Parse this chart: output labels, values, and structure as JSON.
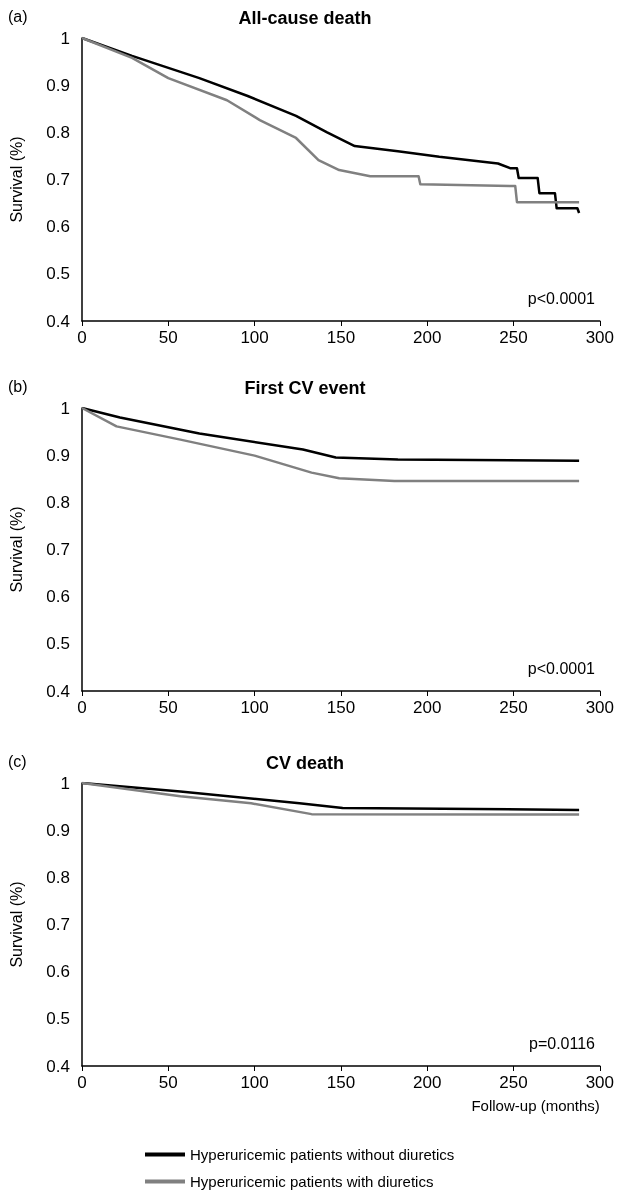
{
  "chart_data": [
    {
      "type": "line",
      "title": "All-cause death",
      "ylabel": "Survival (%)",
      "annotations": [
        "(a)",
        "p<0.0001"
      ],
      "xlim": [
        0,
        300
      ],
      "xticks": [
        0,
        50,
        100,
        150,
        200,
        250,
        300
      ],
      "ylim": [
        0.4,
        1
      ],
      "yticks": [
        0.4,
        0.5,
        0.6,
        0.7,
        0.8,
        0.9,
        1
      ],
      "marker": "none",
      "series": [
        {
          "color": "#000000",
          "x": [
            0,
            29,
            68,
            96,
            124,
            142,
            158,
            183,
            207,
            241,
            248,
            252,
            253,
            264,
            265,
            274,
            275,
            287,
            288
          ],
          "values": [
            1,
            0.962,
            0.915,
            0.877,
            0.835,
            0.8,
            0.771,
            0.76,
            0.748,
            0.734,
            0.724,
            0.724,
            0.703,
            0.703,
            0.671,
            0.671,
            0.639,
            0.639,
            0.629
          ]
        },
        {
          "color": "#808080",
          "x": [
            0,
            29,
            50,
            84,
            103,
            124,
            137,
            149,
            167,
            183,
            195,
            196,
            248,
            251,
            252,
            288
          ],
          "values": [
            1,
            0.958,
            0.915,
            0.868,
            0.826,
            0.788,
            0.741,
            0.72,
            0.707,
            0.707,
            0.707,
            0.69,
            0.686,
            0.686,
            0.652,
            0.652
          ]
        }
      ]
    },
    {
      "type": "line",
      "title": "First CV event",
      "ylabel": "Survival (%)",
      "annotations": [
        "(b)",
        "p<0.0001"
      ],
      "xlim": [
        0,
        300
      ],
      "xticks": [
        0,
        50,
        100,
        150,
        200,
        250,
        300
      ],
      "ylim": [
        0.4,
        1
      ],
      "yticks": [
        0.4,
        0.5,
        0.6,
        0.7,
        0.8,
        0.9,
        1
      ],
      "marker": "none",
      "series": [
        {
          "color": "#000000",
          "x": [
            0,
            22,
            68,
            128,
            147,
            183,
            288
          ],
          "values": [
            1,
            0.98,
            0.946,
            0.912,
            0.895,
            0.891,
            0.888
          ]
        },
        {
          "color": "#808080",
          "x": [
            0,
            20,
            57,
            100,
            133,
            149,
            181,
            288
          ],
          "values": [
            1,
            0.961,
            0.933,
            0.899,
            0.863,
            0.851,
            0.845,
            0.845
          ]
        }
      ]
    },
    {
      "type": "line",
      "title": "CV death",
      "xlabel": "Follow-up (months)",
      "ylabel": "Survival (%)",
      "annotations": [
        "(c)",
        "p=0.0116"
      ],
      "xlim": [
        0,
        300
      ],
      "xticks": [
        0,
        50,
        100,
        150,
        200,
        250,
        300
      ],
      "ylim": [
        0.4,
        1
      ],
      "yticks": [
        0.4,
        0.5,
        0.6,
        0.7,
        0.8,
        0.9,
        1
      ],
      "marker": "none",
      "legend": "bottom",
      "series": [
        {
          "name": "Hyperuricemic patients without diuretics",
          "color": "#000000",
          "x": [
            0,
            57,
            126,
            151,
            288
          ],
          "values": [
            1,
            0.982,
            0.957,
            0.947,
            0.943
          ]
        },
        {
          "name": "Hyperuricemic patients with diuretics",
          "color": "#808080",
          "x": [
            0,
            57,
            98,
            133,
            288
          ],
          "values": [
            1,
            0.972,
            0.957,
            0.934,
            0.933
          ]
        }
      ]
    }
  ]
}
